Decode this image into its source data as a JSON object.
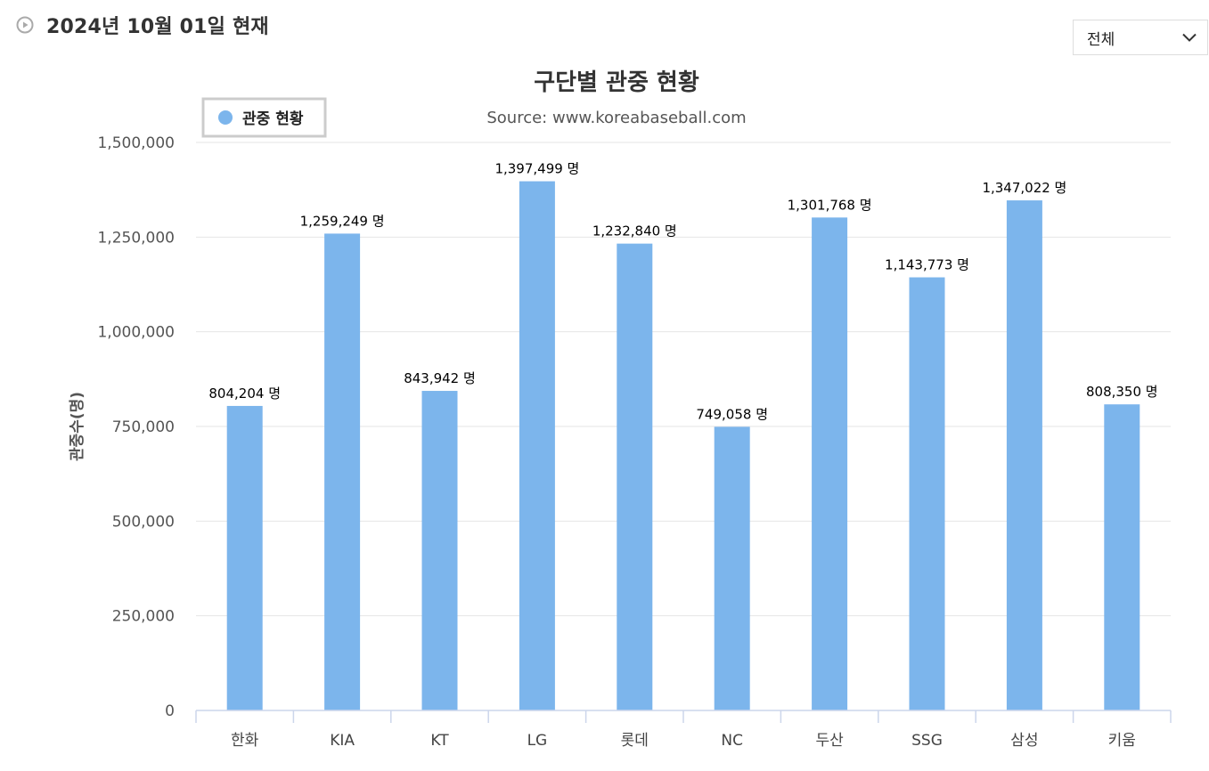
{
  "header": {
    "date_text": "2024년 10월 01일 현재"
  },
  "filter": {
    "selected": "전체"
  },
  "chart_data": {
    "type": "bar",
    "title": "구단별 관중 현황",
    "subtitle": "Source: www.koreabaseball.com",
    "ylabel": "관중수(명)",
    "xlabel": "",
    "legend": {
      "label": "관중 현황",
      "position": "top-left"
    },
    "categories": [
      "한화",
      "KIA",
      "KT",
      "LG",
      "롯데",
      "NC",
      "두산",
      "SSG",
      "삼성",
      "키움"
    ],
    "series": [
      {
        "name": "관중 현황",
        "color": "#7cb5ec",
        "values": [
          804204,
          1259249,
          843942,
          1397499,
          1232840,
          749058,
          1301768,
          1143773,
          1347022,
          808350
        ]
      }
    ],
    "data_labels": [
      "804,204 명",
      "1,259,249 명",
      "843,942 명",
      "1,397,499 명",
      "1,232,840 명",
      "749,058 명",
      "1,301,768 명",
      "1,143,773 명",
      "1,347,022 명",
      "808,350 명"
    ],
    "ylim": [
      0,
      1500000
    ],
    "yticks": [
      0,
      250000,
      500000,
      750000,
      1000000,
      1250000,
      1500000
    ],
    "ytick_labels": [
      "0",
      "250,000",
      "500,000",
      "750,000",
      "1,000,000",
      "1,250,000",
      "1,500,000"
    ],
    "grid": true
  }
}
